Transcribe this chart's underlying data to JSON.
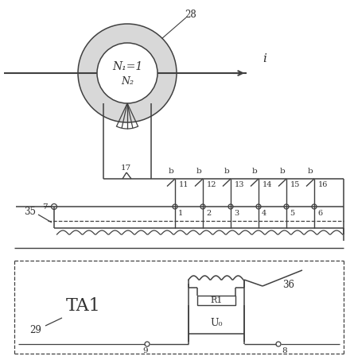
{
  "bg_color": "#ffffff",
  "line_color": "#404040",
  "text_color": "#303030",
  "labels": {
    "N1": "N₁=1",
    "N2": "N₂",
    "i": "i",
    "label28": "28",
    "label17": "17",
    "label35": "35",
    "label7": "7",
    "label11": "11",
    "label12": "12",
    "label13": "13",
    "label14": "14",
    "label15": "15",
    "label16": "16",
    "label1": "1",
    "label2": "2",
    "label3": "3",
    "label4": "4",
    "label5": "5",
    "label6": "6",
    "labelTA1": "TA1",
    "label29": "29",
    "labelR1": "R1",
    "labelU0": "U₀",
    "label9": "9",
    "label8": "8",
    "label36": "36"
  }
}
